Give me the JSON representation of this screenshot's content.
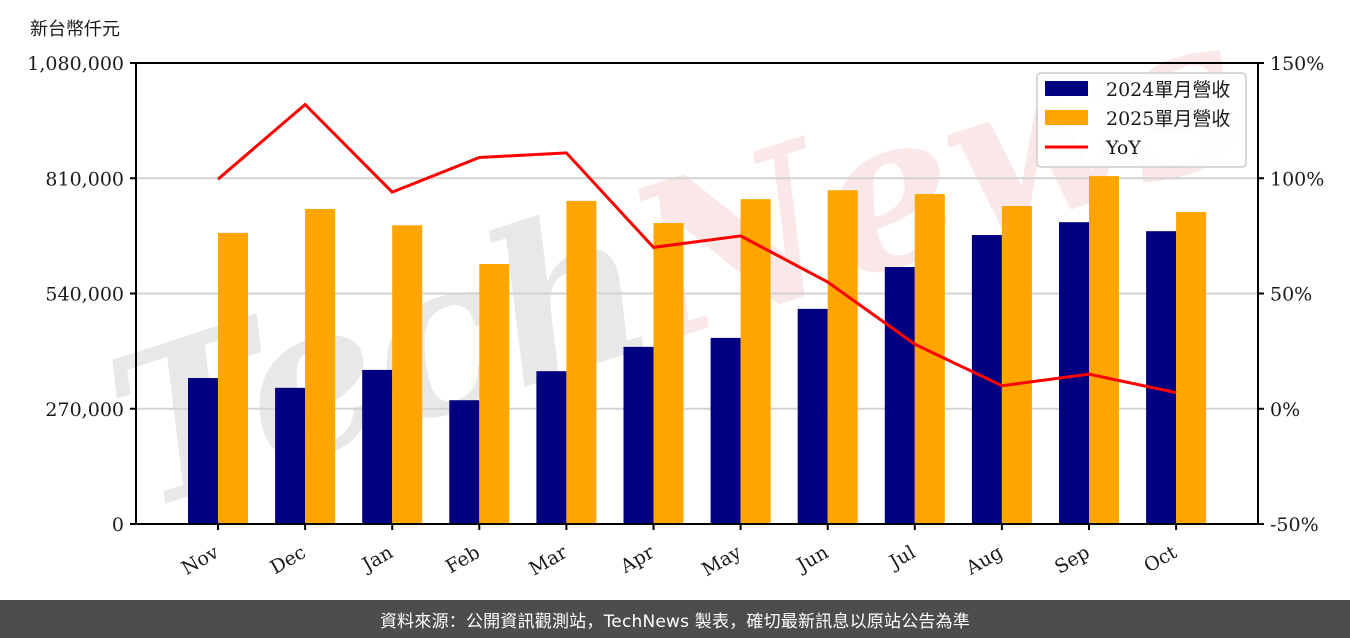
{
  "chart_data": {
    "type": "bar",
    "title": "",
    "ylabel": "新台幣仟元",
    "xlabel": "",
    "categories": [
      "Nov",
      "Dec",
      "Jan",
      "Feb",
      "Mar",
      "Apr",
      "May",
      "Jun",
      "Jul",
      "Aug",
      "Sep",
      "Oct"
    ],
    "series": [
      {
        "name": "2024單月營收",
        "type": "bar",
        "color": "#000080",
        "axis": "left",
        "values": [
          342000,
          319000,
          361000,
          290000,
          358000,
          415000,
          436000,
          504000,
          602000,
          677000,
          707000,
          686000
        ]
      },
      {
        "name": "2025單月營收",
        "type": "bar",
        "color": "#FFA500",
        "axis": "left",
        "values": [
          682000,
          738000,
          700000,
          609000,
          757000,
          705000,
          761000,
          782000,
          773000,
          745000,
          815000,
          731000
        ]
      },
      {
        "name": "YoY",
        "type": "line",
        "color": "#FF0000",
        "axis": "right",
        "unit": "%",
        "values": [
          99.6,
          132,
          94,
          109,
          111,
          70,
          75,
          55,
          28,
          10,
          15,
          7
        ]
      }
    ],
    "ylim": [
      0,
      1080000
    ],
    "yticks": [
      0,
      270000,
      540000,
      810000,
      1080000
    ],
    "ytick_labels": [
      "0",
      "270,000",
      "540,000",
      "810,000",
      "1,080,000"
    ],
    "y2lim": [
      -50,
      150
    ],
    "y2ticks": [
      -50,
      0,
      50,
      100,
      150
    ],
    "y2tick_labels": [
      "-50%",
      "0%",
      "50%",
      "100%",
      "150%"
    ],
    "grid": true,
    "legend_position": "upper right",
    "xtick_rotation": 30,
    "watermark": "TechNews"
  },
  "footer": {
    "text": "資料來源：公開資訊觀測站，TechNews 製表，確切最新訊息以原站公告為準"
  }
}
